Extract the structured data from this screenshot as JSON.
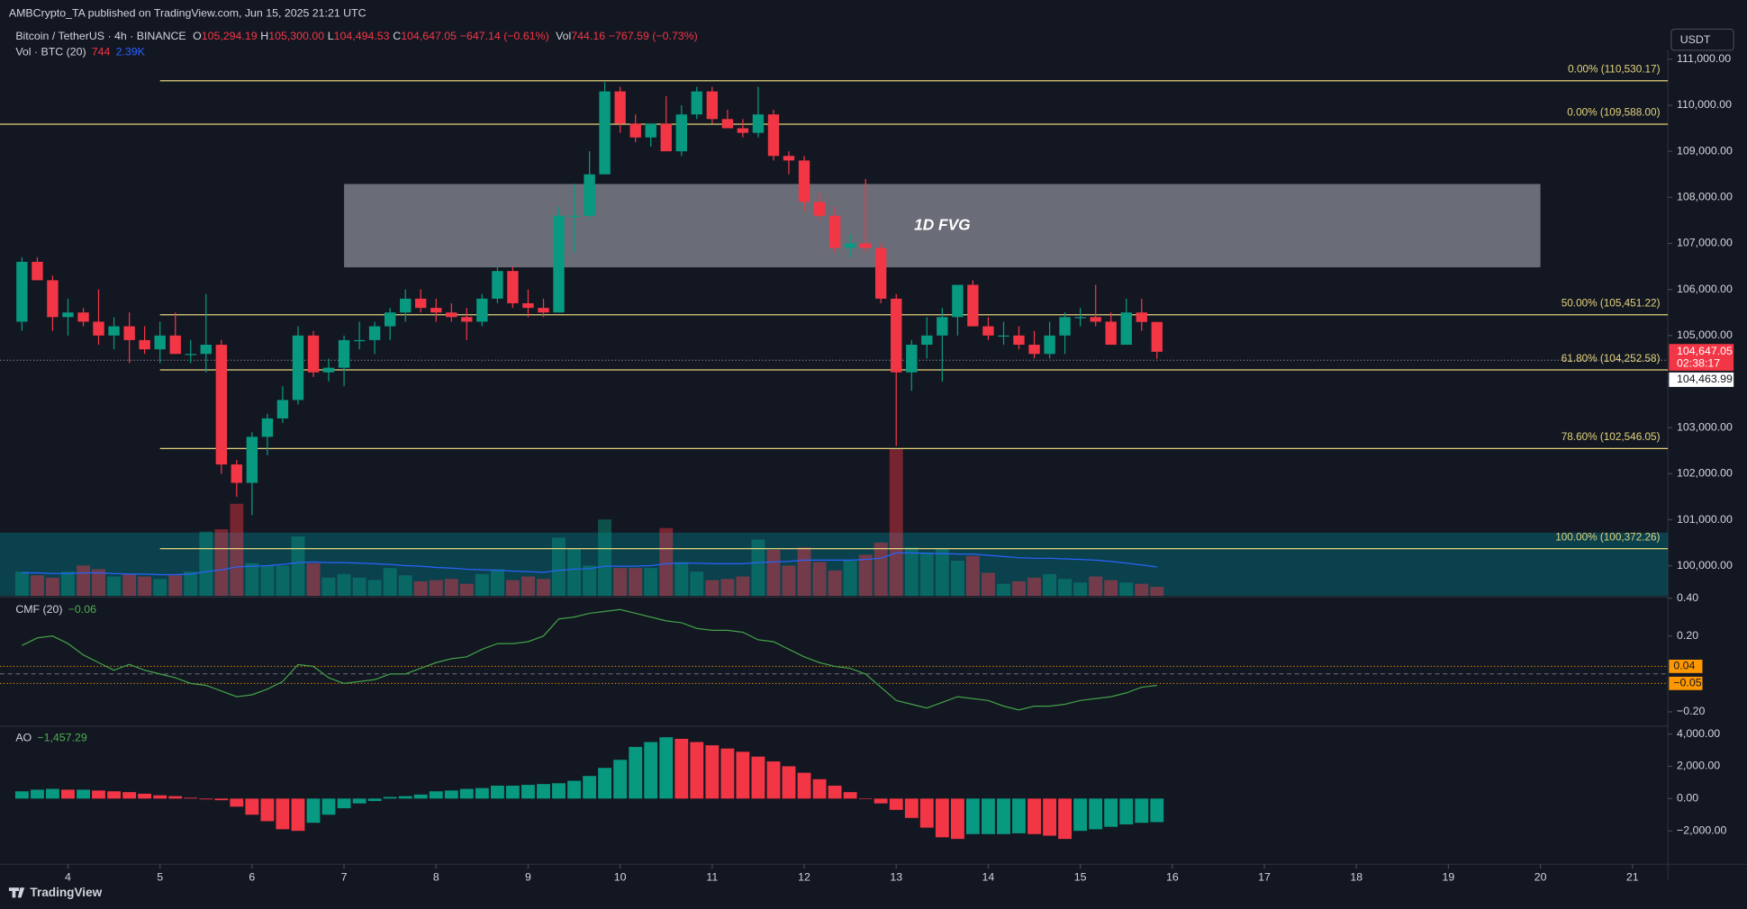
{
  "header": {
    "published": "AMBCrypto_TA published on TradingView.com, Jun 15, 2025 21:21 UTC",
    "symbol": "Bitcoin / TetherUS · 4h · BINANCE",
    "ohlc": [
      {
        "key": "O",
        "value": "105,294.19"
      },
      {
        "key": "H",
        "value": "105,300.00"
      },
      {
        "key": "L",
        "value": "104,494.53"
      },
      {
        "key": "C",
        "value": "104,647.05"
      }
    ],
    "change": "−647.14 (−0.61%)",
    "vol_key": "Vol",
    "vol": "744.16",
    "vol_change": "−767.59 (−0.73%)",
    "volume_legend": "Vol · BTC (20)",
    "volume_last": "744",
    "volume_ma_last": "2.39K",
    "currency": "USDT",
    "brand": "TradingView"
  },
  "chart_data": [
    {
      "type": "candlestick",
      "up_color": "#089981",
      "down_color": "#f23645",
      "xlim": [
        3.2615,
        21.385
      ],
      "xticks": [
        4,
        5,
        6,
        7,
        8,
        9,
        10,
        11,
        12,
        13,
        14,
        15,
        16,
        17,
        18,
        19,
        20,
        21
      ],
      "ylim": [
        99346,
        111193
      ],
      "yticks": [
        {
          "value": 100000,
          "label": "100,000.00"
        },
        {
          "value": 101000,
          "label": "101,000.00"
        },
        {
          "value": 102000,
          "label": "102,000.00"
        },
        {
          "value": 103000,
          "label": "103,000.00"
        },
        {
          "value": 104000,
          "label": "104,000.00"
        },
        {
          "value": 105000,
          "label": "105,000.00"
        },
        {
          "value": 106000,
          "label": "106,000.00"
        },
        {
          "value": 107000,
          "label": "107,000.00"
        },
        {
          "value": 108000,
          "label": "108,000.00"
        },
        {
          "value": 109000,
          "label": "109,000.00"
        },
        {
          "value": 110000,
          "label": "110,000.00"
        },
        {
          "value": 111000,
          "label": "111,000.00"
        }
      ],
      "x": [
        3.5,
        3.667,
        3.833,
        4,
        4.167,
        4.333,
        4.5,
        4.667,
        4.833,
        5,
        5.167,
        5.333,
        5.5,
        5.667,
        5.833,
        6,
        6.167,
        6.333,
        6.5,
        6.667,
        6.833,
        7,
        7.167,
        7.333,
        7.5,
        7.667,
        7.833,
        8,
        8.167,
        8.333,
        8.5,
        8.667,
        8.833,
        9,
        9.167,
        9.333,
        9.5,
        9.667,
        9.833,
        10,
        10.167,
        10.333,
        10.5,
        10.667,
        10.833,
        11,
        11.167,
        11.333,
        11.5,
        11.667,
        11.833,
        12,
        12.167,
        12.333,
        12.5,
        12.667,
        12.833,
        13,
        13.167,
        13.333,
        13.5,
        13.667,
        13.833,
        14,
        14.167,
        14.333,
        14.5,
        14.667,
        14.833,
        15,
        15.167,
        15.333,
        15.5,
        15.667,
        15.833
      ],
      "open": [
        105300,
        106600,
        106200,
        105400,
        105500,
        105300,
        105000,
        105200,
        104900,
        104700,
        105000,
        104600,
        104600,
        104800,
        102200,
        101800,
        102800,
        103200,
        103600,
        105000,
        104200,
        104300,
        104900,
        104900,
        105200,
        105500,
        105800,
        105600,
        105500,
        105400,
        105300,
        105800,
        106400,
        105700,
        105600,
        105500,
        107600,
        107600,
        108500,
        110300,
        109600,
        109300,
        109600,
        109000,
        109800,
        110300,
        109700,
        109500,
        109400,
        109800,
        108900,
        108800,
        107900,
        107600,
        106900,
        107000,
        106900,
        105800,
        104200,
        104800,
        105000,
        105400,
        106100,
        105200,
        105000,
        105000,
        104800,
        104600,
        105000,
        105400,
        105400,
        105300,
        104800,
        105500,
        105294.19
      ],
      "high": [
        106700,
        106700,
        106300,
        105800,
        105600,
        106000,
        105400,
        105500,
        105200,
        105300,
        105500,
        104900,
        105900,
        104900,
        102300,
        102900,
        103300,
        103900,
        105200,
        105100,
        104500,
        105000,
        105300,
        105300,
        105600,
        106000,
        106000,
        105800,
        105700,
        105600,
        105900,
        106500,
        106500,
        106000,
        105800,
        107800,
        108300,
        109000,
        110500,
        110400,
        109800,
        109600,
        110200,
        110000,
        110400,
        110400,
        109900,
        109700,
        110400,
        109900,
        109000,
        108900,
        108100,
        107800,
        107200,
        108400,
        107000,
        105900,
        104900,
        105400,
        105600,
        106100,
        106200,
        105400,
        105300,
        105200,
        105100,
        105300,
        105500,
        105600,
        106100,
        105500,
        105800,
        105800,
        105300
      ],
      "low": [
        105100,
        106200,
        105100,
        105000,
        105200,
        104800,
        104700,
        104400,
        104600,
        104400,
        104600,
        104400,
        104200,
        102000,
        101500,
        101100,
        102400,
        103100,
        103500,
        104100,
        104000,
        103900,
        104700,
        104600,
        104900,
        105300,
        105500,
        105300,
        105300,
        104900,
        105200,
        105700,
        105600,
        105400,
        105400,
        105500,
        106800,
        107500,
        108500,
        109400,
        109200,
        109100,
        109000,
        108900,
        109700,
        109600,
        109500,
        109300,
        109300,
        108800,
        108500,
        107700,
        107500,
        106800,
        106700,
        106800,
        105700,
        102600,
        103800,
        104500,
        104000,
        105000,
        105200,
        104900,
        104800,
        104700,
        104500,
        104500,
        104600,
        105200,
        105200,
        104800,
        104800,
        105100,
        104494.53
      ],
      "close": [
        106600,
        106200,
        105400,
        105500,
        105300,
        105000,
        105200,
        104900,
        104700,
        105000,
        104600,
        104600,
        104800,
        102200,
        101800,
        102800,
        103200,
        103600,
        105000,
        104200,
        104300,
        104900,
        104900,
        105200,
        105500,
        105800,
        105600,
        105500,
        105400,
        105300,
        105800,
        106400,
        105700,
        105600,
        105500,
        107600,
        107600,
        108500,
        110300,
        109600,
        109300,
        109600,
        109000,
        109800,
        110300,
        109700,
        109500,
        109400,
        109800,
        108900,
        108800,
        107900,
        107600,
        106900,
        107000,
        106900,
        105800,
        104200,
        104800,
        105000,
        105400,
        106100,
        105200,
        105000,
        105000,
        104800,
        104600,
        105000,
        105400,
        105400,
        105300,
        104800,
        105500,
        105294.19,
        104647.05
      ],
      "volume_lim": [
        0,
        45000
      ],
      "volume": [
        2000,
        1700,
        1500,
        2000,
        2500,
        2200,
        1600,
        1800,
        1600,
        1400,
        1700,
        2000,
        5300,
        5500,
        7600,
        2700,
        2500,
        2500,
        4900,
        2700,
        1500,
        1800,
        1500,
        1300,
        2300,
        1700,
        1200,
        1300,
        1400,
        1000,
        1800,
        2200,
        1300,
        1600,
        1400,
        4800,
        3900,
        2500,
        6300,
        2300,
        2300,
        2300,
        5600,
        2800,
        2000,
        1300,
        1400,
        1600,
        4650,
        3800,
        2500,
        4000,
        2800,
        2100,
        2900,
        3400,
        4400,
        12100,
        4000,
        3600,
        3900,
        2900,
        3300,
        1900,
        1000,
        1200,
        1500,
        1800,
        1400,
        1100,
        1600,
        1300,
        1100,
        1000,
        744
      ],
      "volume_ma_color": "#2962ff",
      "volume_ma": [
        1900,
        1900,
        1850,
        1850,
        1900,
        1900,
        1850,
        1800,
        1800,
        1750,
        1750,
        1800,
        2000,
        2150,
        2400,
        2450,
        2500,
        2600,
        2750,
        2800,
        2750,
        2750,
        2700,
        2650,
        2600,
        2500,
        2450,
        2350,
        2300,
        2200,
        2150,
        2100,
        2050,
        2000,
        1950,
        2100,
        2200,
        2250,
        2450,
        2450,
        2450,
        2500,
        2650,
        2700,
        2700,
        2650,
        2650,
        2650,
        2750,
        2800,
        2850,
        2950,
        2950,
        2950,
        2950,
        3000,
        3100,
        3550,
        3550,
        3500,
        3500,
        3450,
        3450,
        3350,
        3250,
        3150,
        3100,
        3100,
        3050,
        3000,
        2950,
        2850,
        2700,
        2550,
        2390
      ],
      "fib_color": "#e3d27c",
      "fib_levels": [
        {
          "value": 110530.17,
          "label": "0.00% (110,530.17)",
          "from": 5
        },
        {
          "value": 109588,
          "label": "0.00% (109,588.00)",
          "from": 3.2615
        },
        {
          "value": 105451.22,
          "label": "50.00% (105,451.22)",
          "from": 5
        },
        {
          "value": 104252.58,
          "label": "61.80% (104,252.58)",
          "from": 5
        },
        {
          "value": 102546.05,
          "label": "78.60% (102,546.05)",
          "from": 5
        },
        {
          "value": 100372.26,
          "label": "100.00% (100,372.26)",
          "from": 5
        }
      ],
      "zones": [
        {
          "label": "1D FVG",
          "top": 108290,
          "bottom": 106480,
          "from": 7,
          "to": 20,
          "color": "#b2b5be"
        },
        {
          "top": 100720,
          "bottom": 99346,
          "from": 3.2615,
          "to": 21.385,
          "color": "#00838f"
        }
      ],
      "last_price": {
        "value": 104647.05,
        "label": "104,647.05",
        "countdown": "02:38:17",
        "color": "#f23645"
      },
      "price_line": {
        "value": 104463.99,
        "label": "104,463.99"
      }
    },
    {
      "type": "line",
      "name": "CMF (20)",
      "last_label": "−0.06",
      "color": "#43a047",
      "ylim": [
        -0.27,
        0.4
      ],
      "yticks": [
        {
          "value": 0.4,
          "label": "0.40"
        },
        {
          "value": 0.2,
          "label": "0.20"
        },
        {
          "value": -0.2,
          "label": "−0.20"
        }
      ],
      "levels": [
        {
          "value": 0.04,
          "label": "0.04"
        },
        {
          "value": -0.05,
          "label": "−0.05"
        }
      ],
      "level_color": "#ff9800",
      "values": [
        0.15,
        0.19,
        0.2,
        0.16,
        0.1,
        0.06,
        0.02,
        0.05,
        0.02,
        0,
        -0.02,
        -0.05,
        -0.06,
        -0.09,
        -0.12,
        -0.11,
        -0.08,
        -0.04,
        0.05,
        0.04,
        -0.02,
        -0.05,
        -0.04,
        -0.03,
        0,
        0,
        0.03,
        0.06,
        0.08,
        0.09,
        0.13,
        0.16,
        0.16,
        0.17,
        0.2,
        0.29,
        0.3,
        0.32,
        0.33,
        0.34,
        0.32,
        0.3,
        0.28,
        0.27,
        0.24,
        0.23,
        0.23,
        0.22,
        0.18,
        0.17,
        0.13,
        0.09,
        0.06,
        0.04,
        0.03,
        0,
        -0.07,
        -0.14,
        -0.16,
        -0.18,
        -0.15,
        -0.12,
        -0.13,
        -0.14,
        -0.17,
        -0.19,
        -0.17,
        -0.17,
        -0.16,
        -0.14,
        -0.13,
        -0.12,
        -0.1,
        -0.07,
        -0.06
      ]
    },
    {
      "type": "bar",
      "name": "AO",
      "last_label": "−1,457.29",
      "up_color": "#089981",
      "down_color": "#f23645",
      "ylim": [
        -4000,
        4414
      ],
      "yticks": [
        {
          "value": 4000,
          "label": "4,000.00"
        },
        {
          "value": 2000,
          "label": "2,000.00"
        },
        {
          "value": 0,
          "label": "0.00"
        },
        {
          "value": -2000,
          "label": "−2,000.00"
        }
      ],
      "values": [
        450,
        550,
        600,
        550,
        550,
        500,
        450,
        400,
        300,
        200,
        150,
        50,
        -50,
        -100,
        -500,
        -1000,
        -1400,
        -1900,
        -2000,
        -1500,
        -1000,
        -600,
        -300,
        -150,
        100,
        150,
        250,
        450,
        500,
        600,
        650,
        800,
        800,
        850,
        900,
        950,
        1100,
        1400,
        1900,
        2400,
        3200,
        3500,
        3800,
        3700,
        3500,
        3300,
        3100,
        2900,
        2600,
        2300,
        2000,
        1600,
        1200,
        800,
        400,
        0,
        -300,
        -700,
        -1200,
        -1800,
        -2400,
        -2500,
        -2200,
        -2200,
        -2200,
        -2150,
        -2200,
        -2300,
        -2500,
        -2000,
        -1900,
        -1750,
        -1600,
        -1500,
        -1457.29
      ]
    }
  ]
}
